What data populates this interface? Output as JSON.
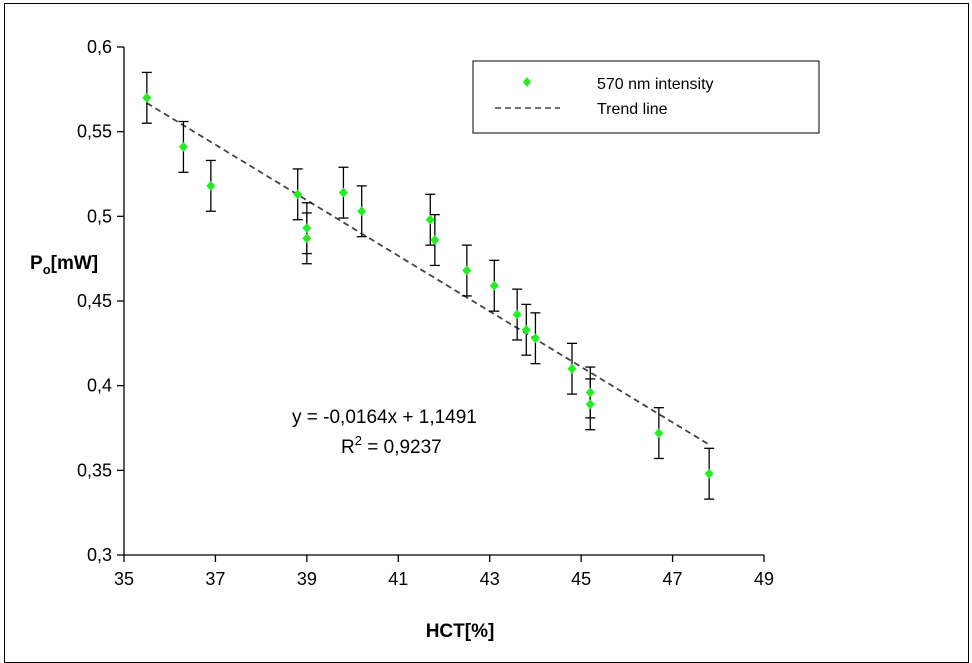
{
  "chart_data": {
    "type": "scatter",
    "title": "",
    "xlabel": "HCT[%]",
    "ylabel_main": "P",
    "ylabel_sub": "o",
    "ylabel_unit": "[mW]",
    "xlim": [
      35,
      49
    ],
    "ylim": [
      0.3,
      0.6
    ],
    "x_ticks": [
      35,
      37,
      39,
      41,
      43,
      45,
      47,
      49
    ],
    "x_tick_labels": [
      "35",
      "37",
      "39",
      "41",
      "43",
      "45",
      "47",
      "49"
    ],
    "y_ticks": [
      0.3,
      0.35,
      0.4,
      0.45,
      0.5,
      0.55,
      0.6
    ],
    "y_tick_labels": [
      "0,3",
      "0,35",
      "0,4",
      "0,45",
      "0,5",
      "0,55",
      "0,6"
    ],
    "grid": false,
    "legend_position": "top-right",
    "series": [
      {
        "name": "570 nm intensity",
        "color": "#22ee22",
        "marker": "diamond",
        "error": 0.015,
        "points": [
          {
            "x": 35.5,
            "y": 0.57
          },
          {
            "x": 36.3,
            "y": 0.541
          },
          {
            "x": 36.9,
            "y": 0.518
          },
          {
            "x": 38.8,
            "y": 0.513
          },
          {
            "x": 39.0,
            "y": 0.493
          },
          {
            "x": 39.0,
            "y": 0.487
          },
          {
            "x": 39.8,
            "y": 0.514
          },
          {
            "x": 40.2,
            "y": 0.503
          },
          {
            "x": 41.7,
            "y": 0.498
          },
          {
            "x": 41.8,
            "y": 0.486
          },
          {
            "x": 42.5,
            "y": 0.468
          },
          {
            "x": 43.1,
            "y": 0.459
          },
          {
            "x": 43.6,
            "y": 0.442
          },
          {
            "x": 43.8,
            "y": 0.433
          },
          {
            "x": 44.0,
            "y": 0.428
          },
          {
            "x": 44.8,
            "y": 0.41
          },
          {
            "x": 45.2,
            "y": 0.396
          },
          {
            "x": 45.2,
            "y": 0.389
          },
          {
            "x": 46.7,
            "y": 0.372
          },
          {
            "x": 47.8,
            "y": 0.348
          }
        ]
      },
      {
        "name": "Trend line",
        "color": "#444444",
        "style": "dashed",
        "slope": -0.0164,
        "intercept": 1.1491,
        "x_range": [
          35.5,
          47.8
        ]
      }
    ],
    "annotations": {
      "equation": "y = -0,0164x + 1,1491",
      "r_label": "R",
      "r_superscript": "2",
      "r_value": " = 0,9237"
    }
  }
}
